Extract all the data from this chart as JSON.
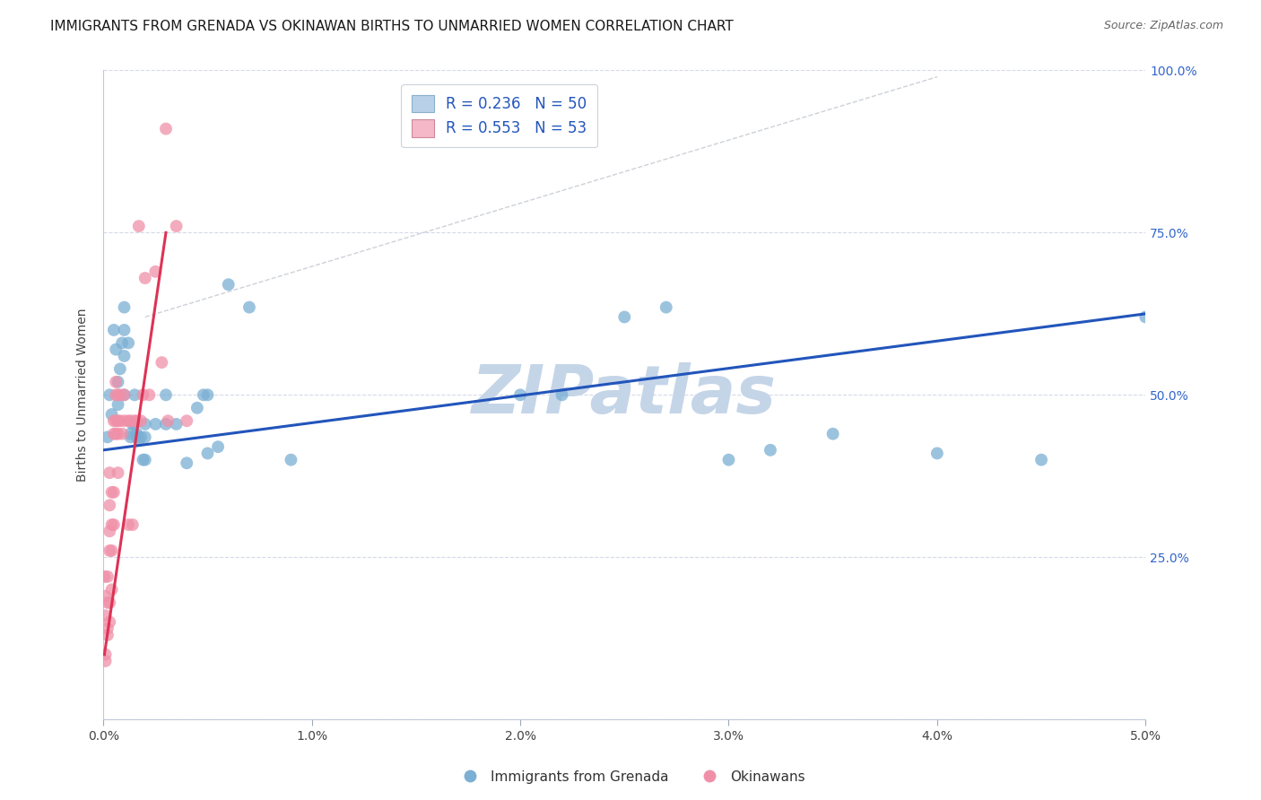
{
  "title": "IMMIGRANTS FROM GRENADA VS OKINAWAN BIRTHS TO UNMARRIED WOMEN CORRELATION CHART",
  "source": "Source: ZipAtlas.com",
  "ylabel": "Births to Unmarried Women",
  "legend_label1": "Immigrants from Grenada",
  "legend_label2": "Okinawans",
  "watermark_text": "ZIPatlas",
  "blue_scatter": [
    [
      0.0002,
      0.435
    ],
    [
      0.0003,
      0.5
    ],
    [
      0.0004,
      0.47
    ],
    [
      0.0005,
      0.6
    ],
    [
      0.0006,
      0.57
    ],
    [
      0.0007,
      0.485
    ],
    [
      0.0007,
      0.52
    ],
    [
      0.0008,
      0.54
    ],
    [
      0.0009,
      0.58
    ],
    [
      0.001,
      0.6
    ],
    [
      0.001,
      0.635
    ],
    [
      0.001,
      0.5
    ],
    [
      0.001,
      0.56
    ],
    [
      0.0012,
      0.58
    ],
    [
      0.0013,
      0.435
    ],
    [
      0.0013,
      0.44
    ],
    [
      0.0014,
      0.455
    ],
    [
      0.0015,
      0.455
    ],
    [
      0.0015,
      0.5
    ],
    [
      0.0016,
      0.44
    ],
    [
      0.0016,
      0.435
    ],
    [
      0.0017,
      0.43
    ],
    [
      0.0018,
      0.435
    ],
    [
      0.0019,
      0.4
    ],
    [
      0.002,
      0.4
    ],
    [
      0.002,
      0.435
    ],
    [
      0.002,
      0.455
    ],
    [
      0.0025,
      0.455
    ],
    [
      0.003,
      0.5
    ],
    [
      0.003,
      0.455
    ],
    [
      0.0035,
      0.455
    ],
    [
      0.004,
      0.395
    ],
    [
      0.0045,
      0.48
    ],
    [
      0.0048,
      0.5
    ],
    [
      0.005,
      0.5
    ],
    [
      0.005,
      0.41
    ],
    [
      0.0055,
      0.42
    ],
    [
      0.006,
      0.67
    ],
    [
      0.007,
      0.635
    ],
    [
      0.009,
      0.4
    ],
    [
      0.02,
      0.5
    ],
    [
      0.022,
      0.5
    ],
    [
      0.025,
      0.62
    ],
    [
      0.027,
      0.635
    ],
    [
      0.03,
      0.4
    ],
    [
      0.032,
      0.415
    ],
    [
      0.035,
      0.44
    ],
    [
      0.04,
      0.41
    ],
    [
      0.045,
      0.4
    ],
    [
      0.05,
      0.62
    ]
  ],
  "pink_scatter": [
    [
      5e-05,
      0.22
    ],
    [
      0.0001,
      0.16
    ],
    [
      0.0001,
      0.1
    ],
    [
      0.0001,
      0.19
    ],
    [
      0.0001,
      0.09
    ],
    [
      0.0002,
      0.14
    ],
    [
      0.0002,
      0.13
    ],
    [
      0.0002,
      0.18
    ],
    [
      0.0002,
      0.22
    ],
    [
      0.0003,
      0.15
    ],
    [
      0.0003,
      0.18
    ],
    [
      0.0003,
      0.26
    ],
    [
      0.0003,
      0.29
    ],
    [
      0.0003,
      0.33
    ],
    [
      0.0003,
      0.38
    ],
    [
      0.0004,
      0.2
    ],
    [
      0.0004,
      0.26
    ],
    [
      0.0004,
      0.3
    ],
    [
      0.0004,
      0.35
    ],
    [
      0.0005,
      0.3
    ],
    [
      0.0005,
      0.35
    ],
    [
      0.0005,
      0.44
    ],
    [
      0.0005,
      0.46
    ],
    [
      0.0006,
      0.44
    ],
    [
      0.0006,
      0.46
    ],
    [
      0.0006,
      0.5
    ],
    [
      0.0006,
      0.52
    ],
    [
      0.0007,
      0.38
    ],
    [
      0.0007,
      0.44
    ],
    [
      0.0007,
      0.46
    ],
    [
      0.0007,
      0.5
    ],
    [
      0.0008,
      0.46
    ],
    [
      0.0008,
      0.5
    ],
    [
      0.0009,
      0.44
    ],
    [
      0.001,
      0.46
    ],
    [
      0.001,
      0.5
    ],
    [
      0.0012,
      0.3
    ],
    [
      0.0012,
      0.46
    ],
    [
      0.0013,
      0.46
    ],
    [
      0.0014,
      0.3
    ],
    [
      0.0015,
      0.46
    ],
    [
      0.0016,
      0.46
    ],
    [
      0.0017,
      0.76
    ],
    [
      0.0018,
      0.46
    ],
    [
      0.0019,
      0.5
    ],
    [
      0.002,
      0.68
    ],
    [
      0.0022,
      0.5
    ],
    [
      0.0025,
      0.69
    ],
    [
      0.003,
      0.91
    ],
    [
      0.0028,
      0.55
    ],
    [
      0.0031,
      0.46
    ],
    [
      0.0035,
      0.76
    ],
    [
      0.004,
      0.46
    ]
  ],
  "blue_line_x": [
    0.0,
    0.05
  ],
  "blue_line_y": [
    0.415,
    0.625
  ],
  "pink_line_x": [
    5e-05,
    0.003
  ],
  "pink_line_y": [
    0.1,
    0.75
  ],
  "diag_line_x": [
    0.002,
    0.04
  ],
  "diag_line_y": [
    0.62,
    0.99
  ],
  "xlim": [
    0.0,
    0.05
  ],
  "ylim": [
    0.0,
    1.0
  ],
  "xticks": [
    0.0,
    0.01,
    0.02,
    0.03,
    0.04,
    0.05
  ],
  "xticklabels": [
    "0.0%",
    "1.0%",
    "2.0%",
    "3.0%",
    "4.0%",
    "5.0%"
  ],
  "yticks": [
    0.0,
    0.25,
    0.5,
    0.75,
    1.0
  ],
  "yticklabels": [
    "",
    "25.0%",
    "50.0%",
    "75.0%",
    "100.0%"
  ],
  "blue_scatter_color": "#7bafd4",
  "pink_scatter_color": "#f090a8",
  "blue_line_color": "#2255bb",
  "pink_line_color": "#dd3355",
  "diag_line_color": "#c8ccd4",
  "grid_color": "#d4dae8",
  "bg_color": "#ffffff",
  "ylabel_color": "#444444",
  "ytick_color": "#3366cc",
  "xtick_color": "#444444",
  "title_fontsize": 11,
  "source_fontsize": 9,
  "tick_fontsize": 10,
  "ylabel_fontsize": 10,
  "watermark_fontsize": 54,
  "watermark_color": "#c5d5e8",
  "legend_box_blue_face": "#b8d0e8",
  "legend_box_pink_face": "#f4b8c8",
  "legend_text_color": "#2255bb",
  "legend_r1": "R = 0.236   N = 50",
  "legend_r2": "R = 0.553   N = 53"
}
